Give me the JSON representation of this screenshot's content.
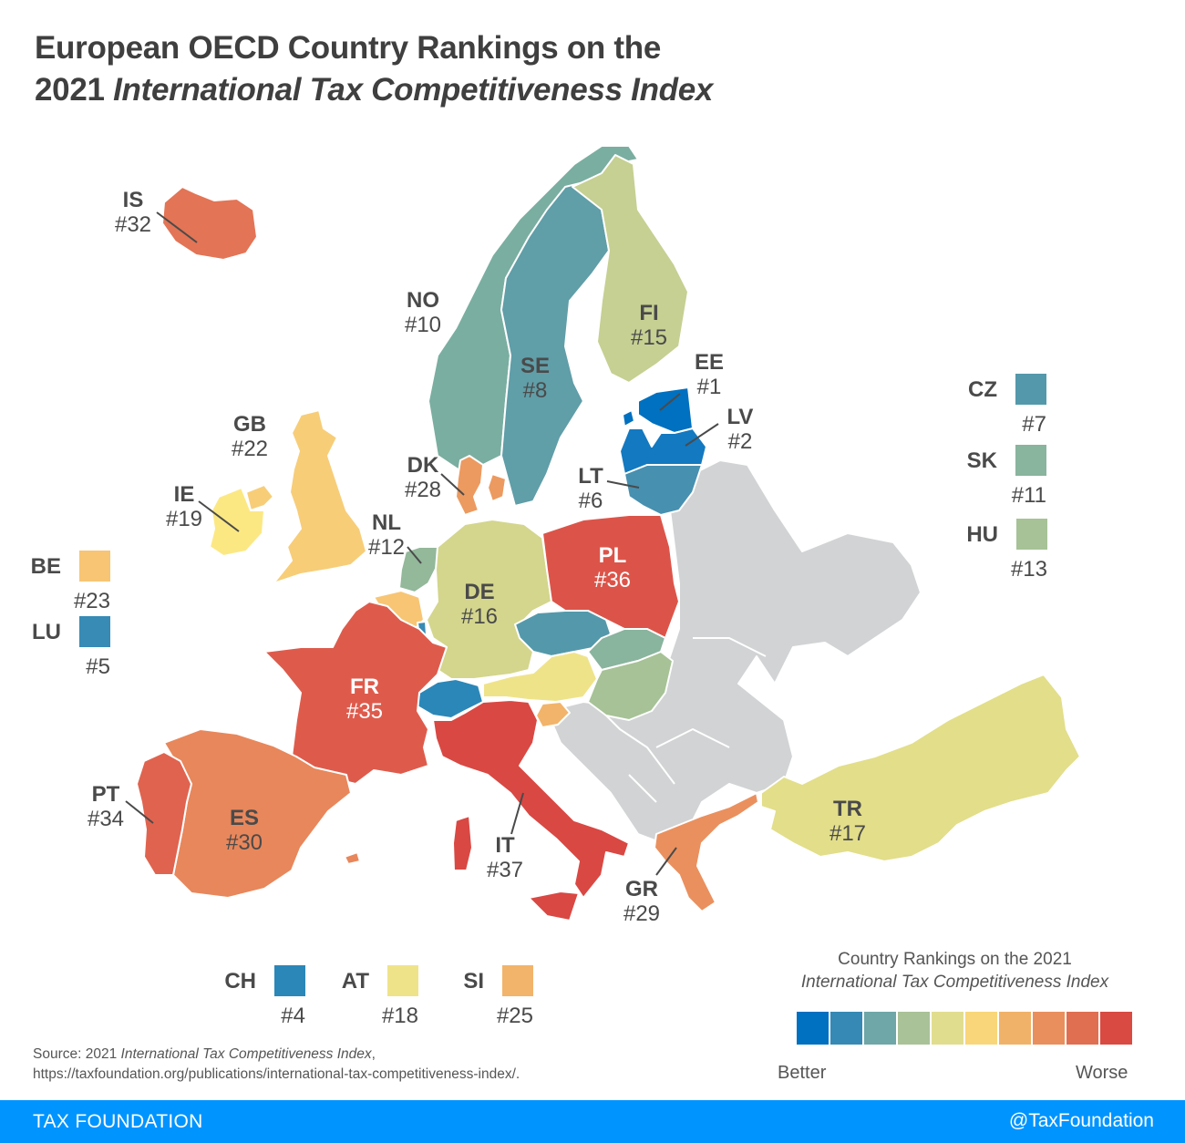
{
  "title": {
    "line1": "European OECD Country Rankings on the",
    "line2_prefix": "2021 ",
    "line2_italic": "International Tax Competitiveness Index"
  },
  "chart_data": {
    "type": "choropleth",
    "title": "European OECD Country Rankings on the 2021 International Tax Competitiveness Index",
    "metric": "Rank on the 2021 International Tax Competitiveness Index (1 = best)",
    "countries": [
      {
        "code": "EE",
        "rank": 1,
        "color": "#0070c0"
      },
      {
        "code": "LV",
        "rank": 2,
        "color": "#1379c0"
      },
      {
        "code": "CH",
        "rank": 4,
        "color": "#2b87b8"
      },
      {
        "code": "LU",
        "rank": 5,
        "color": "#378bb5"
      },
      {
        "code": "LT",
        "rank": 6,
        "color": "#4790b0"
      },
      {
        "code": "CZ",
        "rank": 7,
        "color": "#5499ab"
      },
      {
        "code": "SE",
        "rank": 8,
        "color": "#609ea8"
      },
      {
        "code": "NO",
        "rank": 10,
        "color": "#7aaea0"
      },
      {
        "code": "SK",
        "rank": 11,
        "color": "#89b49e"
      },
      {
        "code": "NL",
        "rank": 12,
        "color": "#93b89a"
      },
      {
        "code": "HU",
        "rank": 13,
        "color": "#a6c296"
      },
      {
        "code": "FI",
        "rank": 15,
        "color": "#c5d092"
      },
      {
        "code": "DE",
        "rank": 16,
        "color": "#d3d68c"
      },
      {
        "code": "TR",
        "rank": 17,
        "color": "#e2de8a"
      },
      {
        "code": "AT",
        "rank": 18,
        "color": "#efe38a"
      },
      {
        "code": "IE",
        "rank": 19,
        "color": "#fce883"
      },
      {
        "code": "GB",
        "rank": 22,
        "color": "#f7cd78"
      },
      {
        "code": "BE",
        "rank": 23,
        "color": "#f7c574"
      },
      {
        "code": "SI",
        "rank": 25,
        "color": "#f2b46a"
      },
      {
        "code": "DK",
        "rank": 28,
        "color": "#ec9a60"
      },
      {
        "code": "GR",
        "rank": 29,
        "color": "#ea905e"
      },
      {
        "code": "ES",
        "rank": 30,
        "color": "#e8875b"
      },
      {
        "code": "IS",
        "rank": 32,
        "color": "#e37455"
      },
      {
        "code": "PT",
        "rank": 34,
        "color": "#e0634f"
      },
      {
        "code": "FR",
        "rank": 35,
        "color": "#de5b4c"
      },
      {
        "code": "PL",
        "rank": 36,
        "color": "#dc5449"
      },
      {
        "code": "IT",
        "rank": 37,
        "color": "#d94843"
      }
    ],
    "non_oecd_color": "#d1d3d4",
    "legend": {
      "title_line1": "Country Rankings on the 2021",
      "title_line2": "International Tax Competitiveness Index",
      "low_label": "Better",
      "high_label": "Worse",
      "scale_colors": [
        "#0070c0",
        "#3589b4",
        "#6fa6a8",
        "#a9c298",
        "#e1dd8f",
        "#f8d679",
        "#f0b269",
        "#e98f5e",
        "#e06f51",
        "#d84a42"
      ]
    }
  },
  "labels": {
    "IS": {
      "code": "IS",
      "rank": "#32"
    },
    "NO": {
      "code": "NO",
      "rank": "#10"
    },
    "SE": {
      "code": "SE",
      "rank": "#8"
    },
    "FI": {
      "code": "FI",
      "rank": "#15"
    },
    "EE": {
      "code": "EE",
      "rank": "#1"
    },
    "LV": {
      "code": "LV",
      "rank": "#2"
    },
    "LT": {
      "code": "LT",
      "rank": "#6"
    },
    "DK": {
      "code": "DK",
      "rank": "#28"
    },
    "GB": {
      "code": "GB",
      "rank": "#22"
    },
    "IE": {
      "code": "IE",
      "rank": "#19"
    },
    "NL": {
      "code": "NL",
      "rank": "#12"
    },
    "DE": {
      "code": "DE",
      "rank": "#16"
    },
    "PL": {
      "code": "PL",
      "rank": "#36"
    },
    "FR": {
      "code": "FR",
      "rank": "#35"
    },
    "ES": {
      "code": "ES",
      "rank": "#30"
    },
    "PT": {
      "code": "PT",
      "rank": "#34"
    },
    "IT": {
      "code": "IT",
      "rank": "#37"
    },
    "GR": {
      "code": "GR",
      "rank": "#29"
    },
    "TR": {
      "code": "TR",
      "rank": "#17"
    }
  },
  "side_keys": {
    "BE": {
      "code": "BE",
      "rank": "#23",
      "color": "#f7c574"
    },
    "LU": {
      "code": "LU",
      "rank": "#5",
      "color": "#378bb5"
    },
    "CZ": {
      "code": "CZ",
      "rank": "#7",
      "color": "#5499ab"
    },
    "SK": {
      "code": "SK",
      "rank": "#11",
      "color": "#89b49e"
    },
    "HU": {
      "code": "HU",
      "rank": "#13",
      "color": "#a6c296"
    },
    "CH": {
      "code": "CH",
      "rank": "#4",
      "color": "#2b87b8"
    },
    "AT": {
      "code": "AT",
      "rank": "#18",
      "color": "#efe38a"
    },
    "SI": {
      "code": "SI",
      "rank": "#25",
      "color": "#f2b46a"
    }
  },
  "source": {
    "prefix": "Source: 2021 ",
    "italic": "International Tax Competitiveness Index",
    "suffix": ",",
    "url": "https://taxfoundation.org/publications/international-tax-competitiveness-index/."
  },
  "footer": {
    "brand": "TAX FOUNDATION",
    "handle": "@TaxFoundation"
  }
}
